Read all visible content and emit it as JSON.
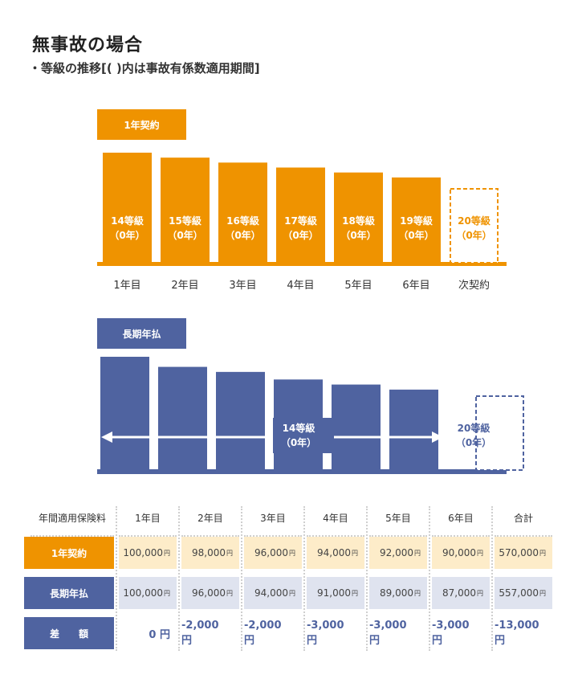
{
  "page": {
    "title": "無事故の場合",
    "subtitle": "・等級の推移[( )内は事故有係数適用期間]"
  },
  "colors": {
    "orange": "#ef9300",
    "navy": "#4f63a0",
    "orange_light": "#fdecc9",
    "navy_light": "#dfe3ef"
  },
  "chart_data": [
    {
      "type": "bar",
      "tag": "1年契約",
      "categories": [
        "1年目",
        "2年目",
        "3年目",
        "4年目",
        "5年目",
        "6年目",
        "次契約"
      ],
      "values": [
        100000,
        98000,
        96000,
        94000,
        92000,
        90000,
        null
      ],
      "bar_labels": [
        "14等級",
        "15等級",
        "16等級",
        "17等級",
        "18等級",
        "19等級",
        "20等級"
      ],
      "bar_sublabels": [
        "（0年）",
        "（0年）",
        "（0年）",
        "（0年）",
        "（0年）",
        "（0年）",
        "（0年）"
      ],
      "color": "#ef9300",
      "last_bar_dashed": true
    },
    {
      "type": "bar",
      "tag": "長期年払",
      "categories": [
        "1年目",
        "2年目",
        "3年目",
        "4年目",
        "5年目",
        "6年目",
        "次契約"
      ],
      "values": [
        100000,
        96000,
        94000,
        91000,
        89000,
        87000,
        null
      ],
      "span_label": "14等級",
      "span_sublabel": "（0年）",
      "next_label": "20等級",
      "next_sublabel": "（0年）",
      "color": "#4f63a0",
      "last_bar_dashed": true
    }
  ],
  "table": {
    "header_label": "年間適用保険料",
    "columns": [
      "1年目",
      "2年目",
      "3年目",
      "4年目",
      "5年目",
      "6年目",
      "合計"
    ],
    "rows": [
      {
        "label": "1年契約",
        "values": [
          "100,000",
          "98,000",
          "96,000",
          "94,000",
          "92,000",
          "90,000",
          "570,000"
        ],
        "unit": "円"
      },
      {
        "label": "長期年払",
        "values": [
          "100,000",
          "96,000",
          "94,000",
          "91,000",
          "89,000",
          "87,000",
          "557,000"
        ],
        "unit": "円"
      }
    ],
    "diff": {
      "label": "差　　額",
      "values": [
        "0 円",
        "-2,000 円",
        "-2,000 円",
        "-3,000 円",
        "-3,000 円",
        "-3,000 円",
        "-13,000 円"
      ]
    }
  }
}
